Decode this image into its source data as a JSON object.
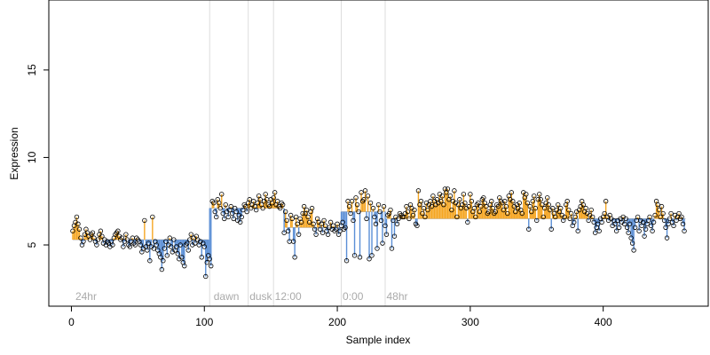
{
  "chart_data": {
    "type": "scatter",
    "title": "",
    "xlabel": "Sample index",
    "ylabel": "Expression",
    "xlim": [
      -17,
      479
    ],
    "ylim": [
      1.5,
      19.0
    ],
    "x_ticks": [
      0,
      100,
      200,
      300,
      400
    ],
    "y_ticks": [
      5,
      10,
      15
    ],
    "baseline_segments": [
      {
        "from": 1,
        "to": 103,
        "y": 5.3
      },
      {
        "from": 104,
        "to": 160,
        "y": 7.1
      },
      {
        "from": 161,
        "to": 202,
        "y": 6.0
      },
      {
        "from": 203,
        "to": 236,
        "y": 6.9
      },
      {
        "from": 237,
        "to": 462,
        "y": 6.5
      }
    ],
    "condition_dividers": [
      {
        "x": 104,
        "label": "24hr",
        "label_x": 3
      },
      {
        "x": 133,
        "label": "dawn",
        "label_x": 107
      },
      {
        "x": 152,
        "label": "dusk",
        "label_x": 134
      },
      {
        "x": 203,
        "label": "12:00",
        "label_x": 153
      },
      {
        "x": 236,
        "label": "0:00",
        "label_x": 204
      },
      {
        "x": null,
        "label": "48hr",
        "label_x": 237
      }
    ],
    "colors": {
      "above": "#f5a623",
      "below": "#5b8fd6",
      "divider": "#dddddd",
      "point_stroke": "#000000",
      "axis": "#000000",
      "condition_label": "#aaaaaa"
    },
    "y": [
      5.8,
      6.1,
      6.3,
      6.6,
      6.2,
      5.9,
      5.4,
      5.0,
      5.2,
      5.6,
      5.9,
      5.7,
      5.5,
      5.3,
      5.6,
      5.7,
      5.4,
      5.2,
      5.0,
      5.3,
      5.6,
      5.8,
      5.5,
      5.1,
      5.3,
      5.0,
      5.2,
      5.1,
      4.9,
      5.2,
      5.0,
      5.4,
      5.6,
      5.7,
      5.8,
      5.5,
      5.3,
      5.4,
      4.9,
      5.2,
      5.6,
      5.3,
      5.0,
      4.9,
      5.2,
      5.4,
      5.1,
      5.0,
      5.4,
      5.3,
      5.2,
      5.0,
      4.6,
      4.8,
      6.4,
      4.9,
      4.7,
      5.1,
      4.1,
      4.9,
      6.6,
      4.8,
      5.2,
      5.0,
      4.7,
      4.5,
      4.3,
      3.6,
      4.1,
      4.8,
      5.2,
      4.4,
      5.0,
      5.4,
      4.9,
      4.6,
      5.3,
      4.7,
      4.9,
      4.5,
      4.2,
      5.0,
      4.3,
      4.0,
      3.8,
      5.0,
      5.1,
      4.7,
      5.3,
      5.6,
      5.0,
      5.4,
      5.1,
      5.5,
      5.3,
      5.0,
      5.2,
      4.3,
      5.1,
      4.9,
      3.2,
      4.0,
      4.4,
      4.2,
      3.8,
      7.5,
      7.4,
      6.9,
      6.6,
      7.6,
      7.4,
      7.1,
      7.9,
      6.8,
      6.5,
      7.3,
      6.9,
      6.6,
      7.0,
      7.2,
      6.8,
      6.5,
      7.1,
      6.9,
      6.4,
      6.7,
      6.3,
      6.6,
      7.0,
      7.3,
      7.2,
      6.9,
      7.4,
      7.6,
      7.1,
      7.3,
      7.5,
      7.2,
      7.0,
      7.4,
      7.8,
      7.6,
      7.3,
      7.1,
      7.5,
      7.9,
      7.6,
      7.3,
      7.2,
      7.6,
      7.4,
      7.7,
      8.0,
      7.3,
      7.5,
      7.2,
      7.1,
      7.4,
      7.3,
      5.7,
      6.9,
      6.4,
      5.8,
      5.2,
      6.7,
      6.5,
      5.2,
      4.3,
      6.6,
      6.2,
      5.6,
      6.5,
      6.3,
      6.8,
      7.2,
      6.8,
      7.0,
      6.6,
      6.3,
      6.9,
      7.1,
      6.2,
      5.9,
      5.6,
      6.5,
      6.3,
      5.9,
      6.2,
      5.7,
      6.4,
      6.1,
      5.8,
      5.6,
      6.0,
      6.3,
      5.9,
      6.1,
      5.8,
      5.9,
      6.2,
      5.6,
      5.8,
      6.1,
      6.3,
      5.9,
      6.0,
      4.1,
      7.5,
      7.2,
      6.8,
      7.5,
      6.4,
      4.4,
      7.7,
      7.3,
      6.9,
      4.3,
      8.0,
      7.5,
      7.6,
      8.1,
      6.5,
      7.8,
      4.2,
      7.4,
      4.4,
      7.1,
      6.6,
      6.2,
      4.8,
      7.3,
      6.9,
      6.4,
      5.1,
      7.2,
      6.1,
      5.6,
      6.7,
      6.8,
      7.0,
      4.8,
      6.4,
      5.5,
      6.6,
      6.2,
      6.5,
      6.8,
      6.7,
      6.6,
      6.6,
      6.8,
      7.2,
      6.9,
      6.5,
      7.3,
      7.1,
      6.7,
      7.0,
      6.2,
      6.1,
      8.1,
      7.3,
      7.5,
      6.8,
      7.1,
      6.6,
      7.4,
      7.0,
      7.3,
      7.5,
      7.2,
      7.8,
      7.5,
      7.3,
      7.6,
      7.4,
      7.9,
      7.5,
      7.8,
      7.3,
      8.2,
      8.0,
      8.2,
      7.6,
      7.8,
      7.0,
      7.5,
      8.1,
      7.4,
      6.6,
      7.3,
      7.6,
      7.1,
      7.3,
      7.9,
      7.4,
      7.1,
      6.3,
      7.2,
      7.9,
      7.5,
      6.9,
      7.1,
      6.6,
      7.3,
      7.4,
      6.9,
      7.2,
      7.6,
      7.7,
      7.4,
      7.2,
      6.8,
      6.9,
      7.3,
      7.5,
      7.1,
      6.8,
      6.9,
      7.3,
      7.2,
      7.7,
      7.5,
      7.4,
      7.0,
      7.5,
      7.2,
      6.8,
      7.8,
      7.6,
      8.0,
      7.5,
      7.2,
      6.9,
      7.3,
      7.1,
      7.4,
      7.0,
      6.8,
      8.0,
      7.7,
      7.9,
      7.4,
      5.9,
      7.2,
      6.9,
      7.5,
      7.8,
      7.1,
      6.4,
      7.6,
      7.9,
      7.6,
      7.3,
      6.6,
      7.1,
      7.4,
      7.7,
      7.3,
      7.0,
      5.9,
      7.1,
      6.8,
      6.6,
      7.0,
      7.3,
      6.9,
      7.1,
      6.7,
      6.4,
      6.6,
      7.3,
      7.5,
      7.0,
      6.5,
      6.8,
      6.1,
      6.3,
      6.6,
      6.9,
      5.8,
      7.0,
      7.2,
      7.5,
      7.3,
      6.9,
      7.1,
      6.8,
      6.4,
      6.7,
      7.0,
      6.6,
      6.3,
      5.7,
      6.0,
      6.2,
      5.8,
      6.5,
      6.3,
      6.6,
      6.8,
      7.5,
      6.6,
      6.4,
      6.7,
      6.5,
      6.1,
      6.4,
      6.2,
      5.8,
      6.4,
      6.0,
      6.5,
      6.3,
      6.6,
      6.2,
      6.5,
      6.0,
      5.7,
      6.2,
      5.4,
      5.1,
      4.7,
      6.0,
      6.4,
      6.6,
      5.8,
      6.4,
      6.1,
      6.3,
      5.5,
      5.9,
      6.2,
      6.4,
      6.6,
      6.1,
      5.8,
      6.3,
      6.7,
      7.5,
      7.3,
      7.0,
      6.6,
      7.2,
      6.8,
      6.4,
      6.0,
      5.4,
      6.2,
      6.5,
      6.8,
      6.3,
      6.1,
      6.7,
      6.4,
      6.6,
      6.8,
      6.5,
      6.6,
      6.2,
      5.8
    ]
  }
}
